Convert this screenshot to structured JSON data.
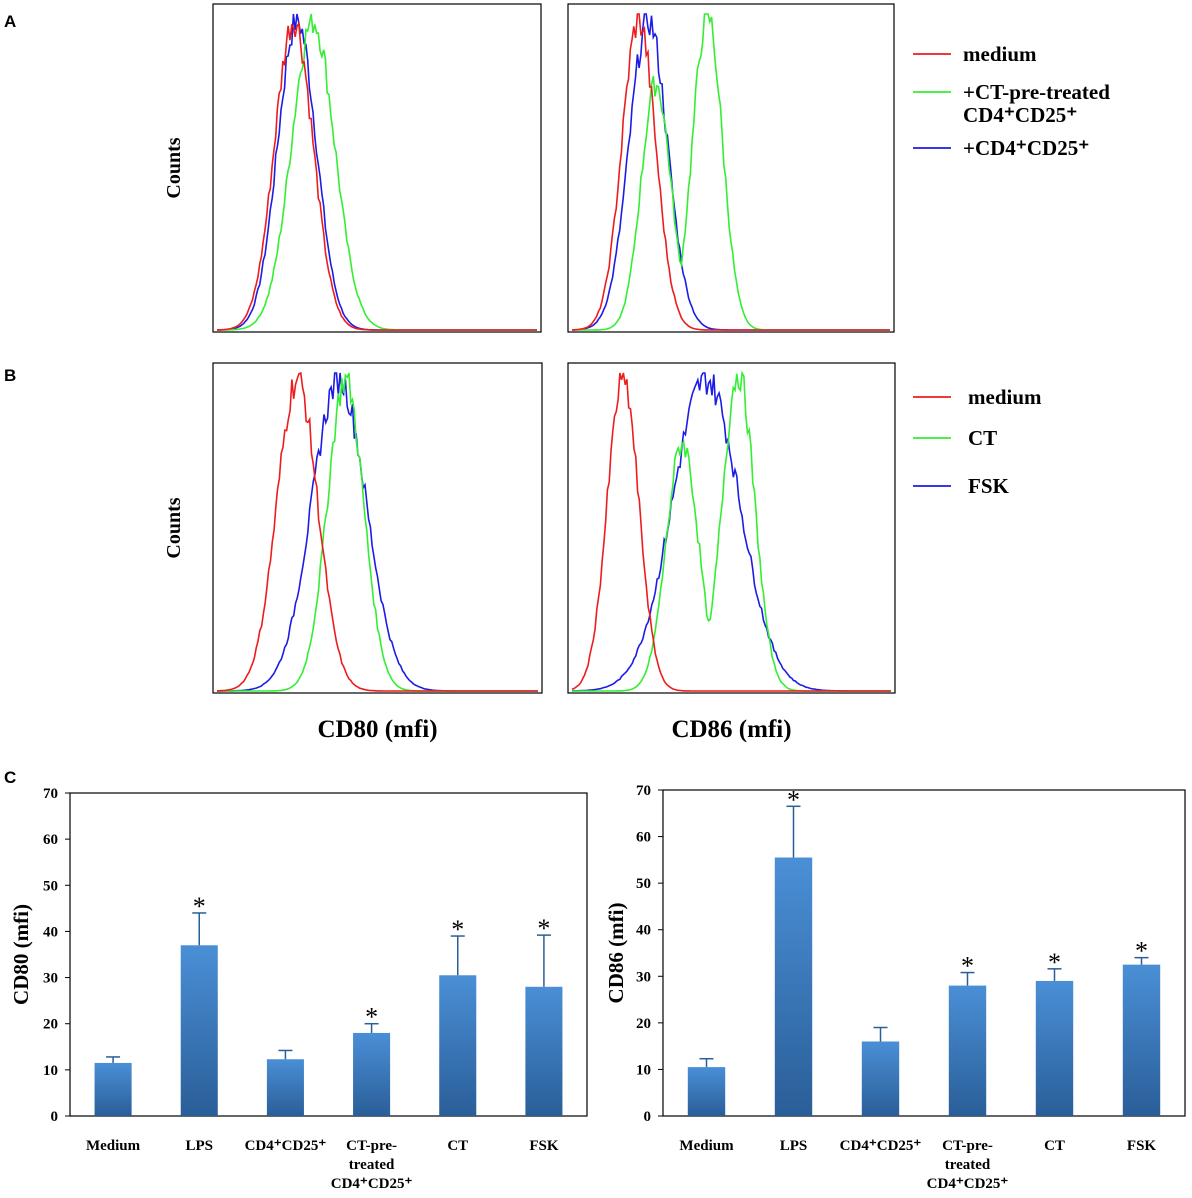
{
  "panel_labels": {
    "a": "A",
    "b": "B",
    "c": "C"
  },
  "colors": {
    "medium": "#ee1c1c",
    "green": "#33ee33",
    "blue": "#1c1ce6",
    "bar": "#3b7fc4",
    "bar_dark": "#2a5e98"
  },
  "chart_data": [
    {
      "type": "line",
      "title": "",
      "panel": "A",
      "xlabel": "",
      "ylabel": "Counts",
      "series": [
        {
          "name": "medium",
          "peak": 0.24,
          "spread": 0.085
        },
        {
          "name": "+CT-pre-treated CD4+CD25+",
          "peak": 0.3,
          "spread": 0.095
        },
        {
          "name": "+CD4+CD25+",
          "peak": 0.25,
          "spread": 0.085
        }
      ],
      "legend": [
        {
          "line1": "medium",
          "line2": ""
        },
        {
          "line1": "+CT-pre-treated",
          "line2": "CD4⁺CD25⁺"
        },
        {
          "line1": "+CD4⁺CD25⁺",
          "line2": ""
        }
      ]
    },
    {
      "type": "line",
      "title": "",
      "panel": "A",
      "xlabel": "",
      "ylabel": "",
      "series": [
        {
          "name": "medium",
          "peak": 0.21,
          "spread": 0.075
        },
        {
          "name": "+CT-pre-treated CD4+CD25+",
          "peak": 0.36,
          "spread": 0.12,
          "bimodal": true
        },
        {
          "name": "+CD4+CD25+",
          "peak": 0.24,
          "spread": 0.085
        }
      ]
    },
    {
      "type": "line",
      "title": "",
      "panel": "B",
      "xlabel": "CD80 (mfi)",
      "ylabel": "Counts",
      "series": [
        {
          "name": "medium",
          "peak": 0.25,
          "spread": 0.09
        },
        {
          "name": "CT",
          "peak": 0.4,
          "spread": 0.08
        },
        {
          "name": "FSK",
          "peak": 0.38,
          "spread": 0.12
        }
      ],
      "legend": [
        {
          "line1": "medium",
          "line2": ""
        },
        {
          "line1": "CT",
          "line2": ""
        },
        {
          "line1": "FSK",
          "line2": ""
        }
      ]
    },
    {
      "type": "line",
      "title": "",
      "panel": "B",
      "xlabel": "CD86 (mfi)",
      "ylabel": "",
      "series": [
        {
          "name": "medium",
          "peak": 0.16,
          "spread": 0.07
        },
        {
          "name": "CT",
          "peak": 0.45,
          "spread": 0.13,
          "bimodal": true
        },
        {
          "name": "FSK",
          "peak": 0.42,
          "spread": 0.15
        }
      ]
    },
    {
      "type": "bar",
      "title": "",
      "panel": "C",
      "xlabel": "",
      "ylabel": "CD80 (mfi)",
      "ylim": [
        0,
        70
      ],
      "yticks": [
        "0",
        "10",
        "20",
        "30",
        "40",
        "50",
        "60",
        "70"
      ],
      "categories": [
        [
          "Medium"
        ],
        [
          "LPS"
        ],
        [
          "CD4⁺CD25⁺"
        ],
        [
          "CT-pre-",
          "treated",
          "CD4⁺CD25⁺"
        ],
        [
          "CT"
        ],
        [
          "FSK"
        ]
      ],
      "values": [
        11.5,
        37,
        12.3,
        18,
        30.5,
        28
      ],
      "errors": [
        1.3,
        7,
        1.9,
        2,
        8.5,
        11.2
      ],
      "significance": [
        "",
        "*",
        "",
        "*",
        "*",
        "*"
      ]
    },
    {
      "type": "bar",
      "title": "",
      "panel": "C",
      "xlabel": "",
      "ylabel": "CD86 (mfi)",
      "ylim": [
        0,
        70
      ],
      "yticks": [
        "0",
        "10",
        "20",
        "30",
        "40",
        "50",
        "60",
        "70"
      ],
      "categories": [
        [
          "Medium"
        ],
        [
          "LPS"
        ],
        [
          "CD4⁺CD25⁺"
        ],
        [
          "CT-pre-",
          "treated",
          "CD4⁺CD25⁺"
        ],
        [
          "CT"
        ],
        [
          "FSK"
        ]
      ],
      "values": [
        10.5,
        55.5,
        16,
        28,
        29,
        32.5
      ],
      "errors": [
        1.8,
        11,
        3,
        2.8,
        2.6,
        1.5
      ],
      "significance": [
        "",
        "*",
        "",
        "*",
        "*",
        "*"
      ]
    }
  ]
}
